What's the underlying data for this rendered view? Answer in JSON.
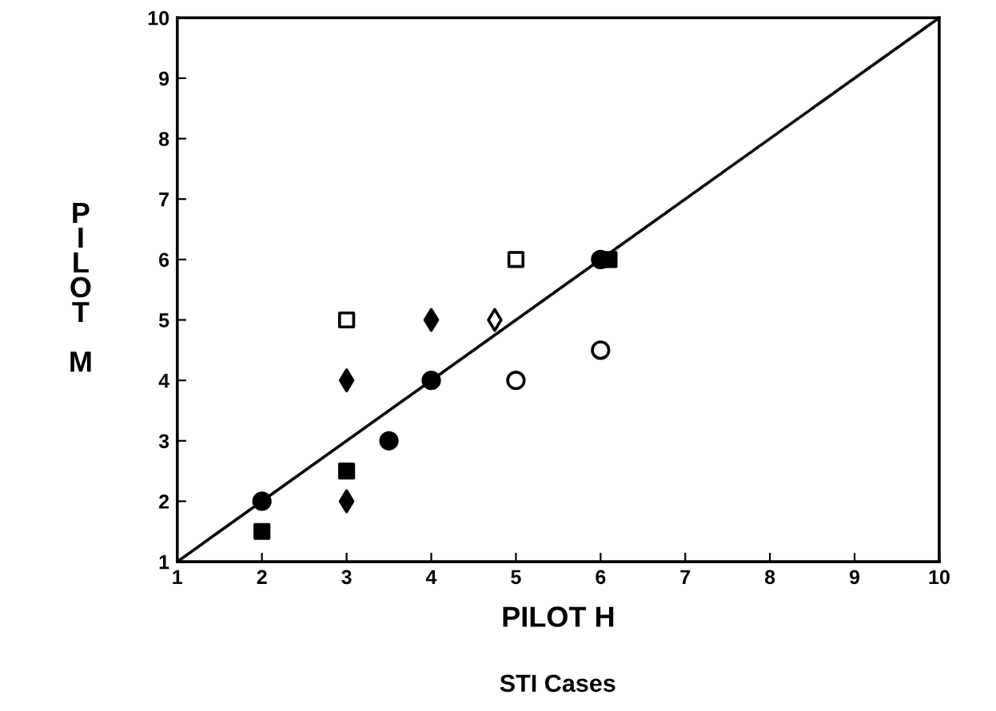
{
  "chart_data": {
    "type": "scatter",
    "title": "STI Cases",
    "xlabel": "PILOT H",
    "ylabel": "PILOT M",
    "xlim": [
      1,
      10
    ],
    "ylim": [
      1,
      10
    ],
    "xticks": [
      1,
      2,
      3,
      4,
      5,
      6,
      7,
      8,
      9,
      10
    ],
    "yticks": [
      1,
      2,
      3,
      4,
      5,
      6,
      7,
      8,
      9,
      10
    ],
    "grid": false,
    "legend": false,
    "series": [
      {
        "type": "line",
        "color": "#000000",
        "marker": "none",
        "line_style": "solid",
        "x": [
          1,
          10
        ],
        "values": [
          1,
          10
        ]
      },
      {
        "color": "#000000",
        "marker": "circle",
        "x": [
          2,
          3.5,
          4,
          6
        ],
        "values": [
          2,
          3,
          4,
          6
        ]
      },
      {
        "color": "#000000",
        "marker": "square",
        "x": [
          2,
          3,
          6.1
        ],
        "values": [
          1.5,
          2.5,
          6
        ]
      },
      {
        "color": "#000000",
        "marker": "diamond",
        "x": [
          3,
          3,
          4
        ],
        "values": [
          4,
          2,
          5
        ]
      },
      {
        "color": "#ffffff",
        "marker": "square",
        "x": [
          3,
          5
        ],
        "values": [
          5,
          6
        ]
      },
      {
        "color": "#ffffff",
        "marker": "diamond",
        "x": [
          4.75
        ],
        "values": [
          5
        ]
      },
      {
        "color": "#ffffff",
        "marker": "circle",
        "x": [
          5,
          6
        ],
        "values": [
          4,
          4.5
        ]
      }
    ]
  }
}
